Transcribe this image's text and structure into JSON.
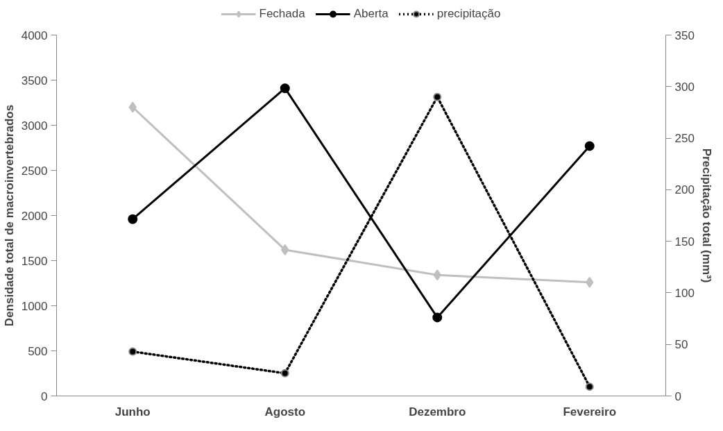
{
  "chart_data": {
    "type": "line",
    "categories": [
      "Junho",
      "Agosto",
      "Dezembro",
      "Fevereiro"
    ],
    "ylabel": "Densidade total de macroinvertebrados",
    "y2label": "Precipitação total (mm³)",
    "ylim": [
      0,
      4000
    ],
    "yticks": [
      0,
      500,
      1000,
      1500,
      2000,
      2500,
      3000,
      3500,
      4000
    ],
    "y2lim": [
      0,
      350
    ],
    "y2ticks": [
      0,
      50,
      100,
      150,
      200,
      250,
      300,
      350
    ],
    "grid": false,
    "legend": "top",
    "series": [
      {
        "name": "Fechada",
        "color": "#bfbfbf",
        "marker": "diamond",
        "line_style": "solid",
        "values": [
          3200,
          1620,
          1340,
          1260
        ]
      },
      {
        "name": "Aberta",
        "color": "#000000",
        "marker": "circle",
        "line_style": "solid",
        "values": [
          1960,
          3410,
          870,
          2770
        ]
      },
      {
        "name": "precipitação",
        "color": "#000000",
        "marker": "circle",
        "line_style": "dotted",
        "axis": "y2",
        "values": [
          43,
          22,
          290,
          9
        ]
      }
    ]
  }
}
